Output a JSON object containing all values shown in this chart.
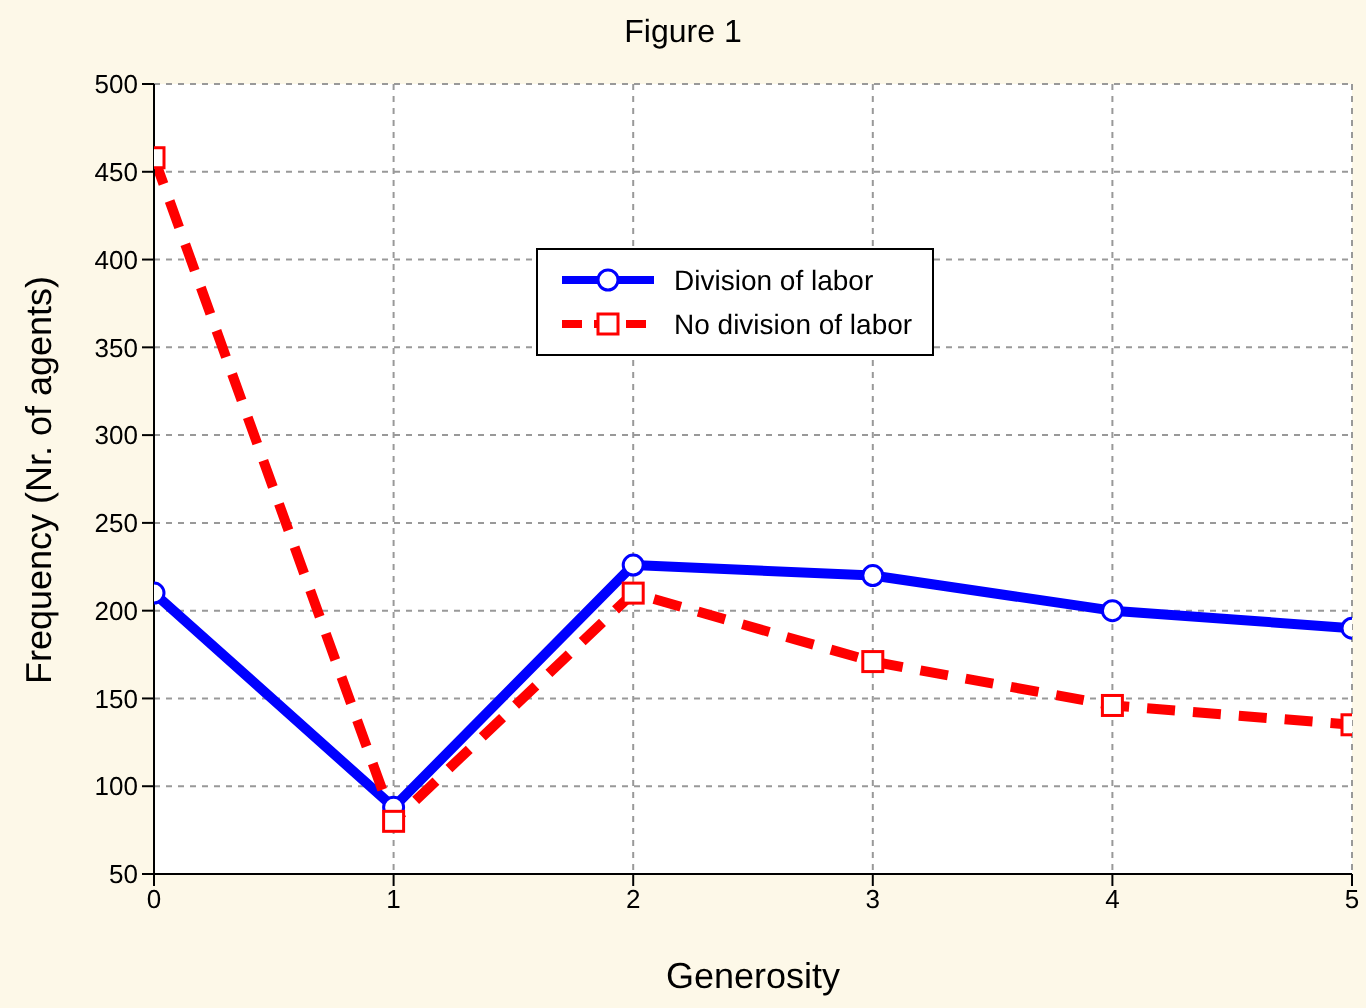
{
  "chart_data": {
    "type": "line",
    "title": "Figure 1",
    "xlabel": "Generosity",
    "ylabel": "Frequency (Nr. of agents)",
    "x": [
      0,
      1,
      2,
      3,
      4,
      5
    ],
    "series": [
      {
        "name": "Division of labor",
        "color": "#0000ff",
        "values": [
          210,
          88,
          226,
          220,
          200,
          190
        ],
        "marker": "circle",
        "line_style": "solid"
      },
      {
        "name": "No division of labor",
        "color": "#ff0000",
        "values": [
          458,
          80,
          210,
          171,
          146,
          135
        ],
        "marker": "square",
        "line_style": "dashed"
      }
    ],
    "xlim": [
      0,
      5
    ],
    "xticks": [
      0,
      1,
      2,
      3,
      4,
      5
    ],
    "ylim": [
      50,
      500
    ],
    "yticks": [
      50,
      100,
      150,
      200,
      250,
      300,
      350,
      400,
      450,
      500
    ],
    "grid": true,
    "legend": "top right"
  }
}
